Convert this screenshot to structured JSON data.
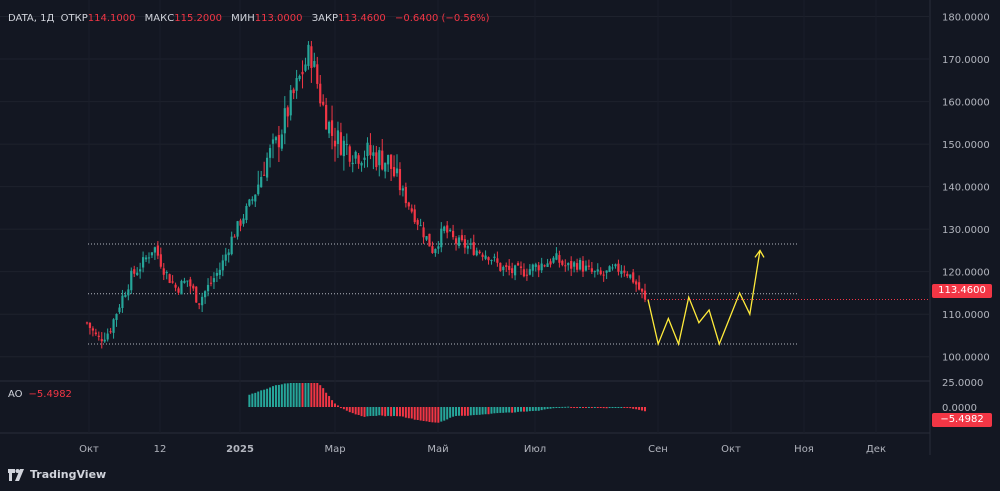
{
  "legend": {
    "symbol": "DATA, 1Д",
    "open_label": "ОТКР",
    "open": "114.1000",
    "high_label": "МАКС",
    "high": "115.2000",
    "low_label": "МИН",
    "low": "113.0000",
    "close_label": "ЗАКР",
    "close": "113.4600",
    "change": "−0.6400 (−0.56%)"
  },
  "ao_legend": {
    "label": "AO",
    "value": "−5.4982"
  },
  "price_tag": {
    "value": "113.4600",
    "color": "#f23645"
  },
  "ao_tag": {
    "value": "−5.4982",
    "color": "#f23645"
  },
  "logo": {
    "text": "TradingView",
    "icon": "tradingview-logo-icon"
  },
  "colors": {
    "up": "#26a69a",
    "down": "#f23645",
    "forecast": "#ffeb3b",
    "background": "#131722"
  },
  "chart_data": {
    "type": "candlestick",
    "price_axis": {
      "range": [
        95,
        182
      ],
      "ticks": [
        "180.0000",
        "170.0000",
        "160.0000",
        "150.0000",
        "140.0000",
        "130.0000",
        "120.0000",
        "110.0000",
        "100.0000"
      ],
      "tick_values": [
        180,
        170,
        160,
        150,
        140,
        130,
        120,
        110,
        100
      ]
    },
    "ao_axis": {
      "ticks": [
        "25.0000",
        "0.0000"
      ],
      "tick_values": [
        25,
        0
      ],
      "range": [
        -25,
        25
      ]
    },
    "time_axis": {
      "labels": [
        "Окт",
        "12",
        "2025",
        "Мар",
        "Май",
        "Июл",
        "Сен",
        "Окт",
        "Ноя",
        "Дек"
      ],
      "bold": [
        false,
        false,
        true,
        false,
        false,
        false,
        false,
        false,
        false,
        false
      ]
    },
    "price_path": [
      [
        "Окт",
        108
      ],
      [
        "Окт",
        104
      ],
      [
        "Окт",
        106
      ],
      [
        "Окт",
        113
      ],
      [
        "Окт",
        119
      ],
      [
        "Окт",
        122
      ],
      [
        "Окт",
        126
      ],
      [
        "12",
        120
      ],
      [
        "12",
        116
      ],
      [
        "12",
        118
      ],
      [
        "12",
        113
      ],
      [
        "12",
        117
      ],
      [
        "12",
        121
      ],
      [
        "12",
        128
      ],
      [
        "12",
        133
      ],
      [
        "12",
        138
      ],
      [
        "12",
        146
      ],
      [
        "12",
        150
      ],
      [
        "2025",
        158
      ],
      [
        "2025",
        165
      ],
      [
        "2025",
        172
      ],
      [
        "2025",
        160
      ],
      [
        "2025",
        152
      ],
      [
        "2025",
        150
      ],
      [
        "2025",
        148
      ],
      [
        "2025",
        148
      ],
      [
        "2025",
        147
      ],
      [
        "Мар",
        146
      ],
      [
        "Мар",
        140
      ],
      [
        "Мар",
        135
      ],
      [
        "Мар",
        130
      ],
      [
        "Мар",
        125
      ],
      [
        "Мар",
        130
      ],
      [
        "Мар",
        127
      ],
      [
        "Мар",
        126
      ],
      [
        "Май",
        125
      ],
      [
        "Май",
        124
      ],
      [
        "Май",
        121
      ],
      [
        "Май",
        120
      ],
      [
        "Май",
        120
      ],
      [
        "Май",
        121
      ],
      [
        "Май",
        122
      ],
      [
        "Июл",
        123
      ],
      [
        "Июл",
        121
      ],
      [
        "Июл",
        122
      ],
      [
        "Июл",
        120
      ],
      [
        "Июл",
        119
      ],
      [
        "Июл",
        120
      ],
      [
        "Июл",
        121
      ],
      [
        "Июл",
        118
      ],
      [
        "Июл",
        113.46
      ]
    ],
    "levels": [
      126.5,
      114.8,
      103.0
    ],
    "forecast": [
      113.46,
      103,
      109,
      103,
      114,
      108,
      111,
      103,
      109,
      115,
      110,
      125
    ],
    "last_close": 113.46
  }
}
